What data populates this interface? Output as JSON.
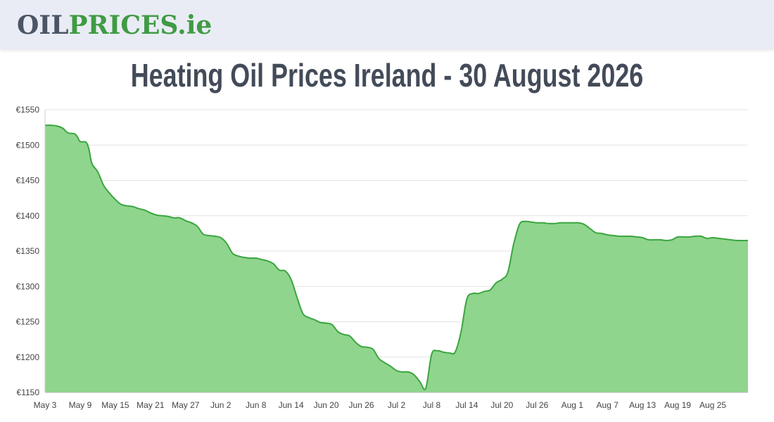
{
  "header": {
    "logo_part1": "OIL",
    "logo_part2": "PRICES",
    "logo_part3": ".ie"
  },
  "page_title": "Heating Oil Prices Ireland - 30 August 2026",
  "colors": {
    "line": "#3aa53f",
    "fill": "#8fd58d",
    "grid": "#e3e3e3",
    "brand_gray": "#4b5566",
    "brand_green": "#3f9b44"
  },
  "chart_data": {
    "type": "area",
    "title": "",
    "xlabel": "",
    "ylabel": "",
    "currency": "€",
    "ylim": [
      1150,
      1550
    ],
    "yticks": [
      1150,
      1200,
      1250,
      1300,
      1350,
      1400,
      1450,
      1500,
      1550
    ],
    "xlim_day": [
      0,
      120
    ],
    "xticks": [
      {
        "day": 0,
        "label": "May 3"
      },
      {
        "day": 6,
        "label": "May 9"
      },
      {
        "day": 12,
        "label": "May 15"
      },
      {
        "day": 18,
        "label": "May 21"
      },
      {
        "day": 24,
        "label": "May 27"
      },
      {
        "day": 30,
        "label": "Jun 2"
      },
      {
        "day": 36,
        "label": "Jun 8"
      },
      {
        "day": 42,
        "label": "Jun 14"
      },
      {
        "day": 48,
        "label": "Jun 20"
      },
      {
        "day": 54,
        "label": "Jun 26"
      },
      {
        "day": 60,
        "label": "Jul 2"
      },
      {
        "day": 66,
        "label": "Jul 8"
      },
      {
        "day": 72,
        "label": "Jul 14"
      },
      {
        "day": 78,
        "label": "Jul 20"
      },
      {
        "day": 84,
        "label": "Jul 26"
      },
      {
        "day": 90,
        "label": "Aug 1"
      },
      {
        "day": 96,
        "label": "Aug 7"
      },
      {
        "day": 102,
        "label": "Aug 13"
      },
      {
        "day": 108,
        "label": "Aug 19"
      },
      {
        "day": 114,
        "label": "Aug 25"
      }
    ],
    "grid": true,
    "series": [
      {
        "points": [
          [
            0,
            1528
          ],
          [
            1,
            1528
          ],
          [
            2,
            1527
          ],
          [
            3,
            1524
          ],
          [
            3.5,
            1520
          ],
          [
            4,
            1517
          ],
          [
            5,
            1516
          ],
          [
            5.5,
            1512
          ],
          [
            6,
            1505
          ],
          [
            7,
            1504
          ],
          [
            7.5,
            1494
          ],
          [
            8,
            1474
          ],
          [
            9,
            1462
          ],
          [
            10,
            1443
          ],
          [
            11,
            1432
          ],
          [
            12,
            1423
          ],
          [
            13,
            1416
          ],
          [
            14,
            1414
          ],
          [
            15,
            1413
          ],
          [
            16,
            1410
          ],
          [
            17,
            1408
          ],
          [
            18,
            1404
          ],
          [
            19,
            1401
          ],
          [
            20,
            1400
          ],
          [
            21,
            1399
          ],
          [
            22,
            1397
          ],
          [
            23,
            1397
          ],
          [
            24,
            1393
          ],
          [
            25,
            1390
          ],
          [
            26,
            1385
          ],
          [
            27,
            1374
          ],
          [
            28,
            1372
          ],
          [
            29,
            1371
          ],
          [
            30,
            1369
          ],
          [
            31,
            1361
          ],
          [
            32,
            1347
          ],
          [
            33,
            1343
          ],
          [
            34,
            1341
          ],
          [
            35,
            1340
          ],
          [
            36,
            1340
          ],
          [
            37,
            1338
          ],
          [
            38,
            1336
          ],
          [
            39,
            1332
          ],
          [
            40,
            1323
          ],
          [
            41,
            1322
          ],
          [
            42,
            1310
          ],
          [
            43,
            1285
          ],
          [
            44,
            1262
          ],
          [
            45,
            1256
          ],
          [
            46,
            1253
          ],
          [
            47,
            1249
          ],
          [
            48,
            1248
          ],
          [
            49,
            1246
          ],
          [
            50,
            1236
          ],
          [
            51,
            1232
          ],
          [
            52,
            1230
          ],
          [
            53,
            1221
          ],
          [
            54,
            1215
          ],
          [
            55,
            1214
          ],
          [
            56,
            1211
          ],
          [
            57,
            1198
          ],
          [
            58,
            1192
          ],
          [
            59,
            1187
          ],
          [
            60,
            1181
          ],
          [
            61,
            1179
          ],
          [
            62,
            1179
          ],
          [
            63,
            1175
          ],
          [
            64,
            1165
          ],
          [
            65,
            1156
          ],
          [
            66,
            1204
          ],
          [
            67,
            1209
          ],
          [
            68,
            1207
          ],
          [
            69,
            1206
          ],
          [
            70,
            1207
          ],
          [
            71,
            1235
          ],
          [
            72,
            1282
          ],
          [
            73,
            1290
          ],
          [
            74,
            1290
          ],
          [
            75,
            1293
          ],
          [
            76,
            1295
          ],
          [
            77,
            1305
          ],
          [
            78,
            1310
          ],
          [
            79,
            1320
          ],
          [
            80,
            1360
          ],
          [
            81,
            1388
          ],
          [
            82,
            1392
          ],
          [
            83,
            1391
          ],
          [
            84,
            1390
          ],
          [
            85,
            1390
          ],
          [
            86,
            1389
          ],
          [
            87,
            1389
          ],
          [
            88,
            1390
          ],
          [
            89,
            1390
          ],
          [
            90,
            1390
          ],
          [
            91,
            1390
          ],
          [
            92,
            1388
          ],
          [
            93,
            1382
          ],
          [
            94,
            1376
          ],
          [
            95,
            1375
          ],
          [
            96,
            1373
          ],
          [
            97,
            1372
          ],
          [
            98,
            1371
          ],
          [
            99,
            1371
          ],
          [
            100,
            1371
          ],
          [
            101,
            1370
          ],
          [
            102,
            1369
          ],
          [
            103,
            1366
          ],
          [
            104,
            1366
          ],
          [
            105,
            1366
          ],
          [
            106,
            1365
          ],
          [
            107,
            1366
          ],
          [
            108,
            1370
          ],
          [
            109,
            1370
          ],
          [
            110,
            1370
          ],
          [
            111,
            1371
          ],
          [
            112,
            1371
          ],
          [
            113,
            1368
          ],
          [
            114,
            1369
          ],
          [
            115,
            1368
          ],
          [
            116,
            1367
          ],
          [
            117,
            1366
          ],
          [
            118,
            1365
          ],
          [
            120,
            1365
          ]
        ]
      }
    ]
  }
}
